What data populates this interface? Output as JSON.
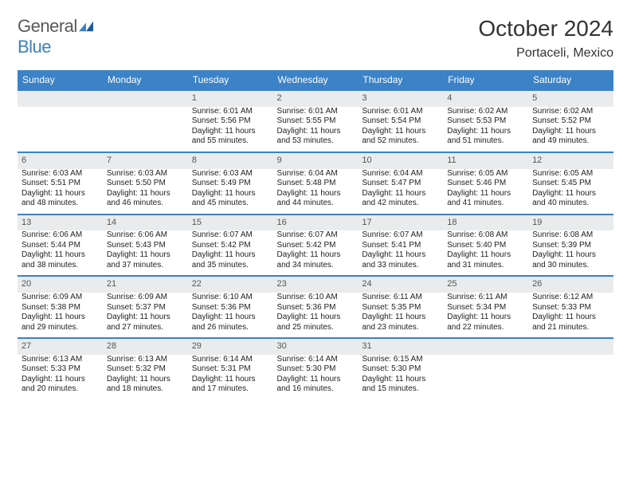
{
  "brand": {
    "name_a": "General",
    "name_b": "Blue"
  },
  "title": "October 2024",
  "location": "Portaceli, Mexico",
  "colors": {
    "header_bg": "#3b82c7",
    "daynum_bg": "#e9ebec",
    "row_border": "#3b82c7",
    "logo_gray": "#5a5a5a",
    "logo_blue": "#3b7fc4"
  },
  "day_headers": [
    "Sunday",
    "Monday",
    "Tuesday",
    "Wednesday",
    "Thursday",
    "Friday",
    "Saturday"
  ],
  "weeks": [
    [
      null,
      null,
      {
        "n": "1",
        "sr": "6:01 AM",
        "ss": "5:56 PM",
        "dl": "11 hours and 55 minutes."
      },
      {
        "n": "2",
        "sr": "6:01 AM",
        "ss": "5:55 PM",
        "dl": "11 hours and 53 minutes."
      },
      {
        "n": "3",
        "sr": "6:01 AM",
        "ss": "5:54 PM",
        "dl": "11 hours and 52 minutes."
      },
      {
        "n": "4",
        "sr": "6:02 AM",
        "ss": "5:53 PM",
        "dl": "11 hours and 51 minutes."
      },
      {
        "n": "5",
        "sr": "6:02 AM",
        "ss": "5:52 PM",
        "dl": "11 hours and 49 minutes."
      }
    ],
    [
      {
        "n": "6",
        "sr": "6:03 AM",
        "ss": "5:51 PM",
        "dl": "11 hours and 48 minutes."
      },
      {
        "n": "7",
        "sr": "6:03 AM",
        "ss": "5:50 PM",
        "dl": "11 hours and 46 minutes."
      },
      {
        "n": "8",
        "sr": "6:03 AM",
        "ss": "5:49 PM",
        "dl": "11 hours and 45 minutes."
      },
      {
        "n": "9",
        "sr": "6:04 AM",
        "ss": "5:48 PM",
        "dl": "11 hours and 44 minutes."
      },
      {
        "n": "10",
        "sr": "6:04 AM",
        "ss": "5:47 PM",
        "dl": "11 hours and 42 minutes."
      },
      {
        "n": "11",
        "sr": "6:05 AM",
        "ss": "5:46 PM",
        "dl": "11 hours and 41 minutes."
      },
      {
        "n": "12",
        "sr": "6:05 AM",
        "ss": "5:45 PM",
        "dl": "11 hours and 40 minutes."
      }
    ],
    [
      {
        "n": "13",
        "sr": "6:06 AM",
        "ss": "5:44 PM",
        "dl": "11 hours and 38 minutes."
      },
      {
        "n": "14",
        "sr": "6:06 AM",
        "ss": "5:43 PM",
        "dl": "11 hours and 37 minutes."
      },
      {
        "n": "15",
        "sr": "6:07 AM",
        "ss": "5:42 PM",
        "dl": "11 hours and 35 minutes."
      },
      {
        "n": "16",
        "sr": "6:07 AM",
        "ss": "5:42 PM",
        "dl": "11 hours and 34 minutes."
      },
      {
        "n": "17",
        "sr": "6:07 AM",
        "ss": "5:41 PM",
        "dl": "11 hours and 33 minutes."
      },
      {
        "n": "18",
        "sr": "6:08 AM",
        "ss": "5:40 PM",
        "dl": "11 hours and 31 minutes."
      },
      {
        "n": "19",
        "sr": "6:08 AM",
        "ss": "5:39 PM",
        "dl": "11 hours and 30 minutes."
      }
    ],
    [
      {
        "n": "20",
        "sr": "6:09 AM",
        "ss": "5:38 PM",
        "dl": "11 hours and 29 minutes."
      },
      {
        "n": "21",
        "sr": "6:09 AM",
        "ss": "5:37 PM",
        "dl": "11 hours and 27 minutes."
      },
      {
        "n": "22",
        "sr": "6:10 AM",
        "ss": "5:36 PM",
        "dl": "11 hours and 26 minutes."
      },
      {
        "n": "23",
        "sr": "6:10 AM",
        "ss": "5:36 PM",
        "dl": "11 hours and 25 minutes."
      },
      {
        "n": "24",
        "sr": "6:11 AM",
        "ss": "5:35 PM",
        "dl": "11 hours and 23 minutes."
      },
      {
        "n": "25",
        "sr": "6:11 AM",
        "ss": "5:34 PM",
        "dl": "11 hours and 22 minutes."
      },
      {
        "n": "26",
        "sr": "6:12 AM",
        "ss": "5:33 PM",
        "dl": "11 hours and 21 minutes."
      }
    ],
    [
      {
        "n": "27",
        "sr": "6:13 AM",
        "ss": "5:33 PM",
        "dl": "11 hours and 20 minutes."
      },
      {
        "n": "28",
        "sr": "6:13 AM",
        "ss": "5:32 PM",
        "dl": "11 hours and 18 minutes."
      },
      {
        "n": "29",
        "sr": "6:14 AM",
        "ss": "5:31 PM",
        "dl": "11 hours and 17 minutes."
      },
      {
        "n": "30",
        "sr": "6:14 AM",
        "ss": "5:30 PM",
        "dl": "11 hours and 16 minutes."
      },
      {
        "n": "31",
        "sr": "6:15 AM",
        "ss": "5:30 PM",
        "dl": "11 hours and 15 minutes."
      },
      null,
      null
    ]
  ],
  "labels": {
    "sunrise": "Sunrise:",
    "sunset": "Sunset:",
    "daylight": "Daylight:"
  }
}
